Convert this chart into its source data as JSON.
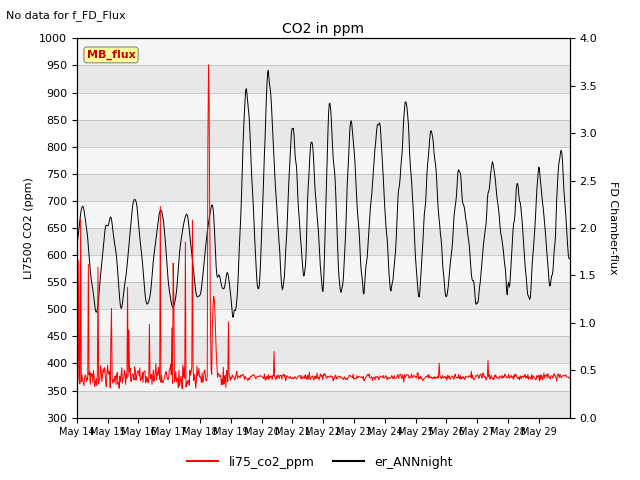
{
  "title": "CO2 in ppm",
  "subtitle": "No data for f_FD_Flux",
  "ylabel_left": "LI7500 CO2 (ppm)",
  "ylabel_right": "FD Chamber-flux",
  "ylim_left": [
    300,
    1000
  ],
  "ylim_right": [
    0.0,
    4.0
  ],
  "yticks_left": [
    300,
    350,
    400,
    450,
    500,
    550,
    600,
    650,
    700,
    750,
    800,
    850,
    900,
    950,
    1000
  ],
  "yticks_right": [
    0.0,
    0.5,
    1.0,
    1.5,
    2.0,
    2.5,
    3.0,
    3.5,
    4.0
  ],
  "xticklabels": [
    "May 14",
    "May 15",
    "May 16",
    "May 17",
    "May 18",
    "May 19",
    "May 20",
    "May 21",
    "May 22",
    "May 23",
    "May 24",
    "May 25",
    "May 26",
    "May 27",
    "May 28",
    "May 29"
  ],
  "legend_labels": [
    "li75_co2_ppm",
    "er_ANNnight"
  ],
  "legend_colors": [
    "red",
    "black"
  ],
  "mb_flux_label": "MB_flux",
  "mb_flux_color": "#cc0000",
  "mb_flux_bg": "#ffff99",
  "n_days": 16,
  "n_per_day": 48,
  "band_colors": [
    "#e8e8e8",
    "#f5f5f5"
  ]
}
